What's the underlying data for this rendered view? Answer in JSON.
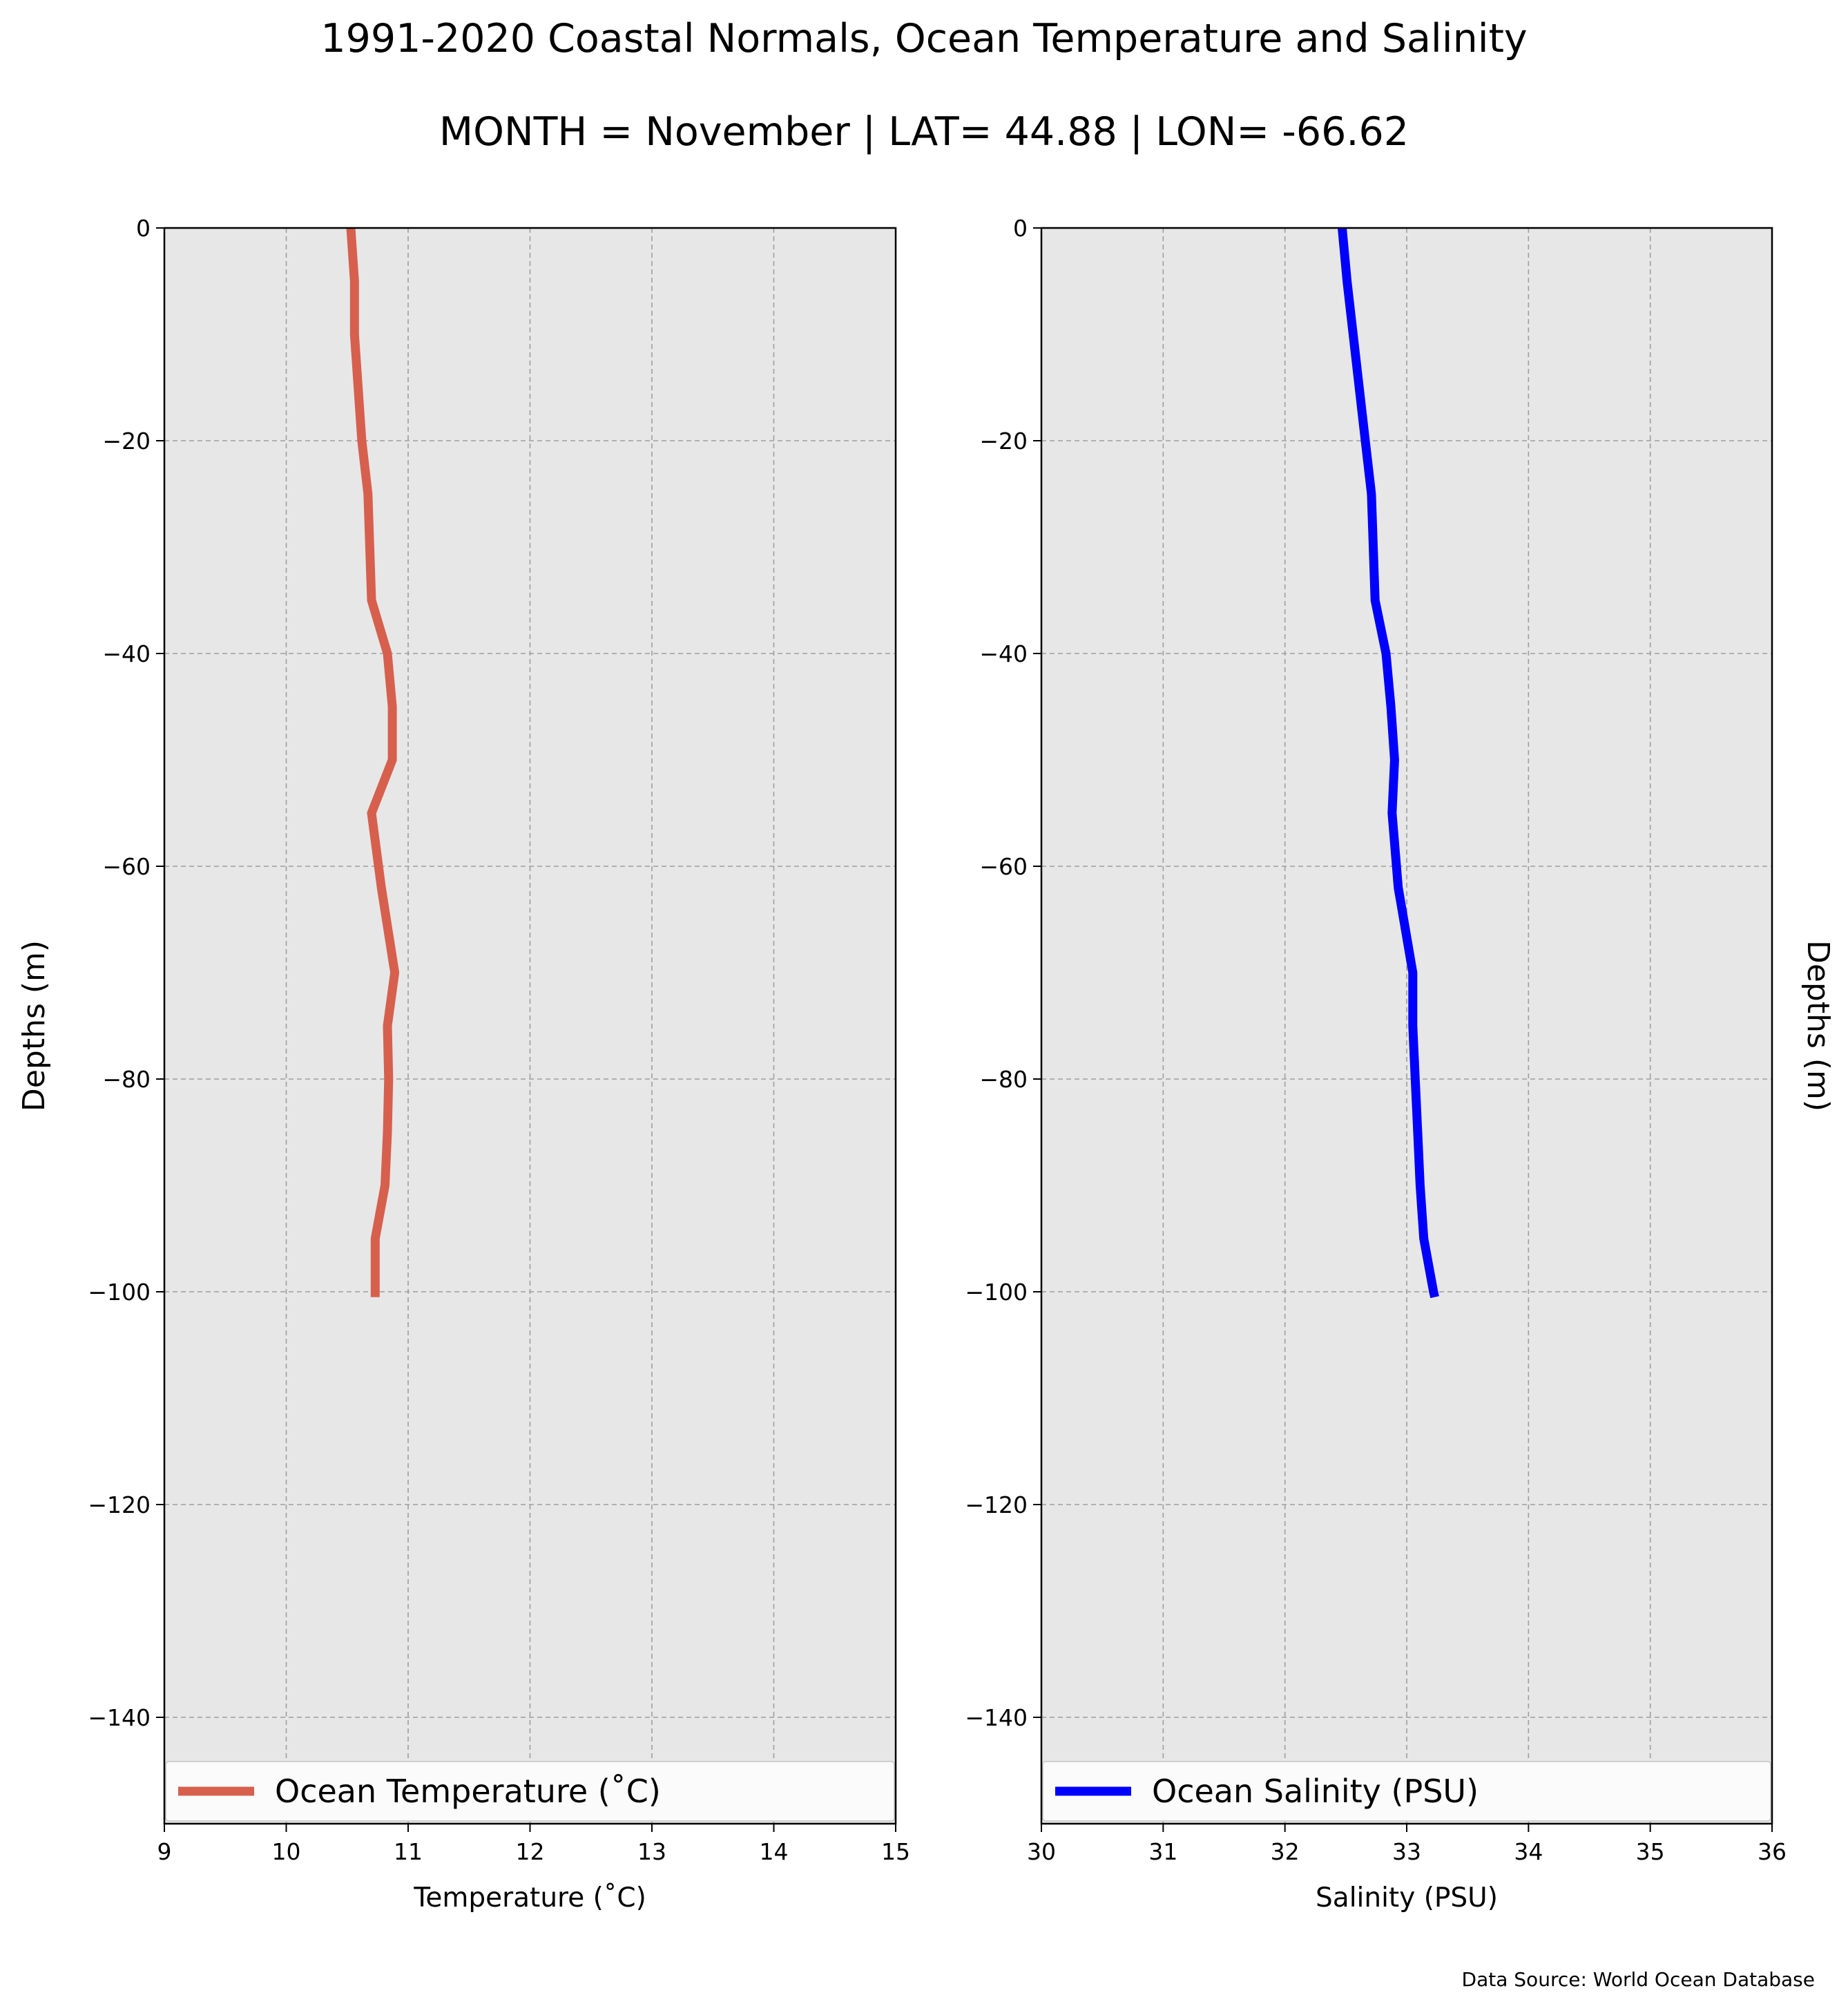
{
  "figure": {
    "title": "1991-2020 Coastal Normals, Ocean Temperature and Salinity",
    "subtitle": "MONTH = November | LAT= 44.88 | LON= -66.62",
    "source_note": "Data Source: World Ocean Database",
    "background_color": "#ffffff",
    "plot_background_color": "#e7e7e7"
  },
  "chart_data": [
    {
      "type": "line",
      "name": "temperature-profile",
      "xlabel": "Temperature ($^\\circ$C)",
      "xlabel_display": "Temperature (˚C)",
      "ylabel": "Depths (m)",
      "ylabel_side": "left",
      "xlim": [
        9,
        15
      ],
      "ylim": [
        -150,
        0
      ],
      "xticks": [
        9,
        10,
        11,
        12,
        13,
        14,
        15
      ],
      "yticks": [
        0,
        -20,
        -40,
        -60,
        -80,
        -100,
        -120,
        -140
      ],
      "ytick_labels": [
        "0",
        "−20",
        "−40",
        "−60",
        "−80",
        "−100",
        "−120",
        "−140"
      ],
      "grid": true,
      "legend_placement": "lower-center",
      "series": [
        {
          "name": "Ocean Temperature (˚C)",
          "color": "#d6604d",
          "x": [
            10.53,
            10.56,
            10.56,
            10.62,
            10.67,
            10.7,
            10.83,
            10.87,
            10.87,
            10.7,
            10.78,
            10.89,
            10.83,
            10.84,
            10.83,
            10.81,
            10.73,
            10.73,
            10.73
          ],
          "y": [
            0,
            -5,
            -10,
            -20,
            -25,
            -35,
            -40,
            -45,
            -50,
            -55,
            -62,
            -70,
            -75,
            -80,
            -85,
            -90,
            -95,
            -100,
            -100.5
          ]
        }
      ]
    },
    {
      "type": "line",
      "name": "salinity-profile",
      "xlabel": "Salinity (PSU)",
      "ylabel": "Depths (m)",
      "ylabel_side": "right",
      "xlim": [
        30,
        36
      ],
      "ylim": [
        -150,
        0
      ],
      "xticks": [
        30,
        31,
        32,
        33,
        34,
        35,
        36
      ],
      "yticks": [
        0,
        -20,
        -40,
        -60,
        -80,
        -100,
        -120,
        -140
      ],
      "ytick_labels": [
        "0",
        "−20",
        "−40",
        "−60",
        "−80",
        "−100",
        "−120",
        "−140"
      ],
      "grid": true,
      "legend_placement": "lower-center",
      "series": [
        {
          "name": "Ocean Salinity (PSU)",
          "color": "#0000ff",
          "x": [
            32.47,
            32.51,
            32.56,
            32.66,
            32.71,
            32.74,
            32.83,
            32.87,
            32.9,
            32.88,
            32.93,
            33.05,
            33.05,
            33.07,
            33.09,
            33.11,
            33.14,
            33.22,
            33.23
          ],
          "y": [
            0,
            -5,
            -10,
            -20,
            -25,
            -35,
            -40,
            -45,
            -50,
            -55,
            -62,
            -70,
            -75,
            -80,
            -85,
            -90,
            -95,
            -100,
            -100.5
          ]
        }
      ]
    }
  ]
}
